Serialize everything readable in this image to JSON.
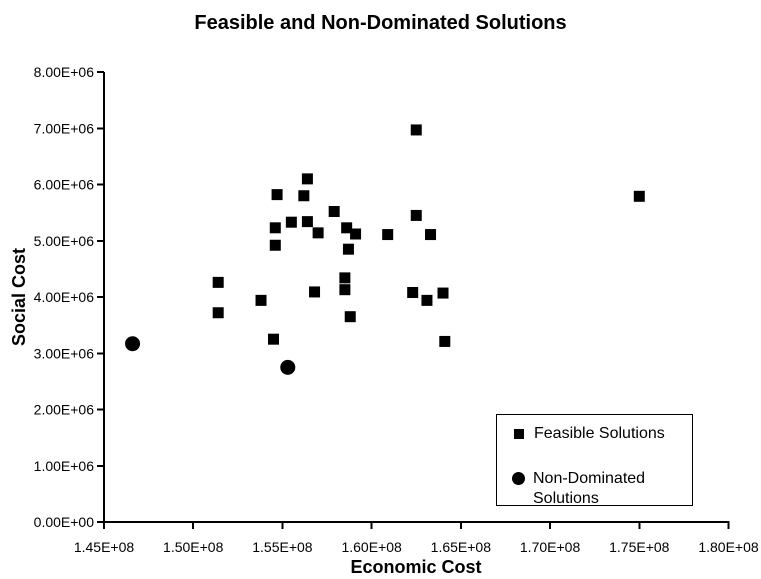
{
  "figure": {
    "background": "#ffffff",
    "ink": "#000000"
  },
  "chart_data": {
    "type": "scatter",
    "title": "Feasible and Non-Dominated Solutions",
    "xlabel": "Economic Cost",
    "ylabel": "Social Cost",
    "xlim": [
      145000000,
      180000000
    ],
    "ylim": [
      0,
      8000000
    ],
    "grid": false,
    "legend_position": "inside-bottom-right",
    "x_tick_values": [
      145000000,
      150000000,
      155000000,
      160000000,
      165000000,
      170000000,
      175000000,
      180000000
    ],
    "x_tick_labels": [
      "1.45E+08",
      "1.50E+08",
      "1.55E+08",
      "1.60E+08",
      "1.65E+08",
      "1.70E+08",
      "1.75E+08",
      "1.80E+08"
    ],
    "y_tick_values": [
      0,
      1000000,
      2000000,
      3000000,
      4000000,
      5000000,
      6000000,
      7000000,
      8000000
    ],
    "y_tick_labels": [
      "0.00E+00",
      "1.00E+06",
      "2.00E+06",
      "3.00E+06",
      "4.00E+06",
      "5.00E+06",
      "6.00E+06",
      "7.00E+06",
      "8.00E+06"
    ],
    "series": [
      {
        "name": "Feasible Solutions",
        "marker": "square",
        "color": "#000000",
        "points": [
          [
            151400000,
            4260000
          ],
          [
            151400000,
            3720000
          ],
          [
            153800000,
            3940000
          ],
          [
            154500000,
            3250000
          ],
          [
            154600000,
            5230000
          ],
          [
            154600000,
            4920000
          ],
          [
            154700000,
            5820000
          ],
          [
            155500000,
            5330000
          ],
          [
            156200000,
            5800000
          ],
          [
            156400000,
            6100000
          ],
          [
            156400000,
            5340000
          ],
          [
            156800000,
            4090000
          ],
          [
            157000000,
            5140000
          ],
          [
            157900000,
            5520000
          ],
          [
            158500000,
            4340000
          ],
          [
            158500000,
            4130000
          ],
          [
            158600000,
            5230000
          ],
          [
            158700000,
            4850000
          ],
          [
            158800000,
            3650000
          ],
          [
            159100000,
            5120000
          ],
          [
            160900000,
            5110000
          ],
          [
            162300000,
            4080000
          ],
          [
            162500000,
            6970000
          ],
          [
            162500000,
            5450000
          ],
          [
            163100000,
            3940000
          ],
          [
            163300000,
            5110000
          ],
          [
            164000000,
            4070000
          ],
          [
            164100000,
            3210000
          ],
          [
            175000000,
            5790000
          ]
        ]
      },
      {
        "name": "Non-Dominated Solutions",
        "marker": "circle",
        "color": "#000000",
        "points": [
          [
            146600000,
            3170000
          ],
          [
            155300000,
            2750000
          ]
        ]
      }
    ]
  },
  "legend": {
    "items": [
      {
        "label": "Feasible Solutions",
        "marker": "square"
      },
      {
        "label": "Non-Dominated Solutions",
        "marker": "circle"
      }
    ]
  }
}
